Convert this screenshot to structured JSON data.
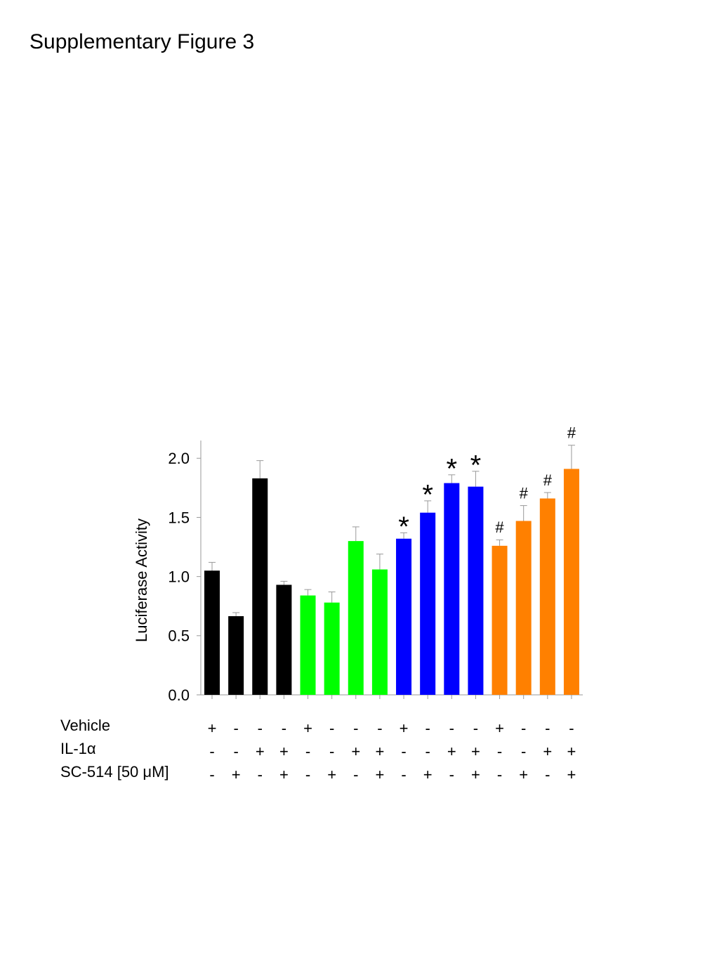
{
  "title": "Supplementary Figure 3",
  "chart_data": {
    "type": "bar",
    "y_label": "Luciferase Activity",
    "values": [
      1.05,
      0.665,
      1.83,
      0.93,
      0.84,
      0.78,
      1.3,
      1.06,
      1.32,
      1.54,
      1.79,
      1.76,
      1.26,
      1.47,
      1.66,
      1.91
    ],
    "errors": [
      0.07,
      0.03,
      0.15,
      0.03,
      0.05,
      0.09,
      0.12,
      0.13,
      0.05,
      0.1,
      0.07,
      0.13,
      0.05,
      0.13,
      0.05,
      0.2
    ],
    "colors": [
      "#000000",
      "#000000",
      "#000000",
      "#000000",
      "#00ff00",
      "#00ff00",
      "#00ff00",
      "#00ff00",
      "#0000ff",
      "#0000ff",
      "#0000ff",
      "#0000ff",
      "#ff8000",
      "#ff8000",
      "#ff8000",
      "#ff8000"
    ],
    "annotations": [
      null,
      null,
      null,
      null,
      null,
      null,
      null,
      null,
      "*",
      "*",
      "*",
      "*",
      "#",
      "#",
      "#",
      "#"
    ],
    "ylim": [
      0,
      2.15
    ],
    "yticks": [
      {
        "value": 0,
        "label": "0.0"
      },
      0.5,
      {
        "value": 1,
        "label": "1.0"
      },
      1.5,
      {
        "value": 2,
        "label": "2.0"
      }
    ],
    "conditions": [
      {
        "label": "Vehicle",
        "values": [
          "+",
          "-",
          "-",
          "-",
          "+",
          "-",
          "-",
          "-",
          "+",
          "-",
          "-",
          "-",
          "+",
          "-",
          "-",
          "-"
        ]
      },
      {
        "label": "IL-1α",
        "values": [
          "-",
          "-",
          "+",
          "+",
          "-",
          "-",
          "+",
          "+",
          "-",
          "-",
          "+",
          "+",
          "-",
          "-",
          "+",
          "+"
        ]
      },
      {
        "label": "SC-514 [50 μM]",
        "values": [
          "-",
          "+",
          "-",
          "+",
          "-",
          "+",
          "-",
          "+",
          "-",
          "+",
          "-",
          "+",
          "-",
          "+",
          "-",
          "+"
        ]
      }
    ]
  }
}
